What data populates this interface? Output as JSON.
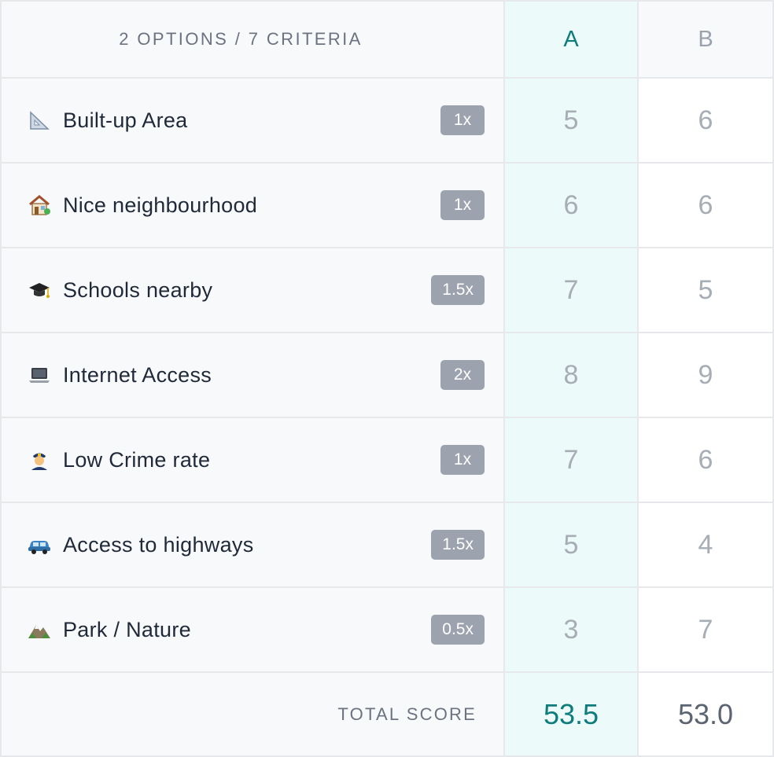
{
  "header": {
    "summary": "2 OPTIONS / 7 CRITERIA",
    "options": [
      {
        "label": "A",
        "color": "#0e7c7b"
      },
      {
        "label": "B",
        "color": "#9aa3ad"
      }
    ]
  },
  "criteria": [
    {
      "icon": "triangular-ruler-icon",
      "name": "Built-up Area",
      "weight": "1x",
      "score_a": "5",
      "score_b": "6"
    },
    {
      "icon": "house-icon",
      "name": "Nice neighbourhood",
      "weight": "1x",
      "score_a": "6",
      "score_b": "6"
    },
    {
      "icon": "graduation-cap-icon",
      "name": "Schools nearby",
      "weight": "1.5x",
      "score_a": "7",
      "score_b": "5"
    },
    {
      "icon": "laptop-icon",
      "name": "Internet Access",
      "weight": "2x",
      "score_a": "8",
      "score_b": "9"
    },
    {
      "icon": "police-officer-icon",
      "name": "Low Crime rate",
      "weight": "1x",
      "score_a": "7",
      "score_b": "6"
    },
    {
      "icon": "car-icon",
      "name": "Access to highways",
      "weight": "1.5x",
      "score_a": "5",
      "score_b": "4"
    },
    {
      "icon": "mountain-icon",
      "name": "Park / Nature",
      "weight": "0.5x",
      "score_a": "3",
      "score_b": "7"
    }
  ],
  "total": {
    "label": "TOTAL SCORE",
    "score_a": "53.5",
    "score_b": "53.0"
  },
  "colors": {
    "accent": "#0e7c7b",
    "highlight_column": "#edfafa",
    "weight_badge": "#9ca3af"
  }
}
